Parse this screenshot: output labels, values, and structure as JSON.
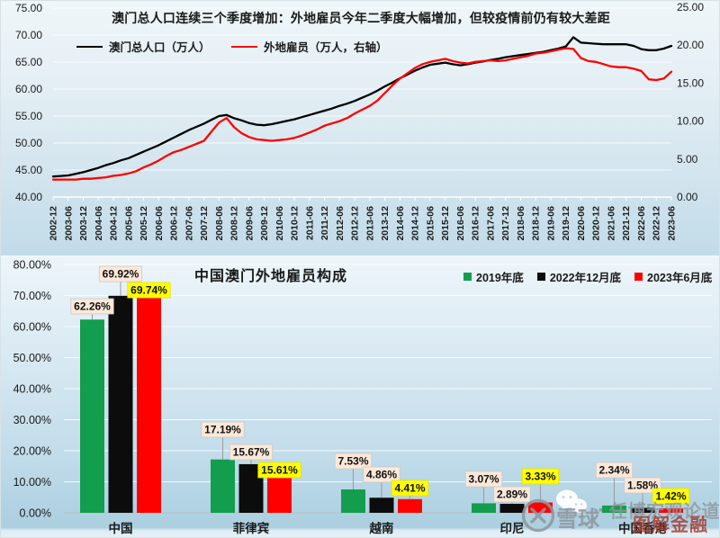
{
  "chart_data": [
    {
      "type": "line",
      "title": "澳门总人口连续三个季度增加：外地雇员今年二季度大幅增加，但较疫情前仍有较大差距",
      "x_labels": [
        "2002-12",
        "2003-06",
        "2003-12",
        "2004-06",
        "2004-12",
        "2005-06",
        "2005-12",
        "2006-06",
        "2006-12",
        "2007-06",
        "2007-12",
        "2008-06",
        "2008-12",
        "2009-06",
        "2009-12",
        "2010-06",
        "2010-12",
        "2011-06",
        "2011-12",
        "2012-06",
        "2012-12",
        "2013-06",
        "2013-12",
        "2014-06",
        "2014-12",
        "2015-06",
        "2015-12",
        "2016-06",
        "2016-12",
        "2017-06",
        "2017-12",
        "2018-06",
        "2018-12",
        "2019-06",
        "2019-12",
        "2020-06",
        "2020-12",
        "2021-06",
        "2021-12",
        "2022-06",
        "2022-12",
        "2023-06"
      ],
      "left_axis": {
        "min": 40,
        "max": 75,
        "ticks": [
          "75.00",
          "70.00",
          "65.00",
          "60.00",
          "55.00",
          "50.00",
          "45.00",
          "40.00"
        ]
      },
      "right_axis": {
        "min": 0,
        "max": 25,
        "ticks": [
          "25.00",
          "20.00",
          "15.00",
          "10.00",
          "5.00",
          "0.00"
        ]
      },
      "grid": true,
      "legend_position": "top",
      "series": [
        {
          "name": "澳门总人口（万人）",
          "axis": "left",
          "color": "#000000",
          "values": [
            43.8,
            43.9,
            44.0,
            44.3,
            44.6,
            45.0,
            45.4,
            45.9,
            46.3,
            46.8,
            47.2,
            47.8,
            48.4,
            49.0,
            49.6,
            50.3,
            51.0,
            51.7,
            52.4,
            53.0,
            53.6,
            54.3,
            55.0,
            55.2,
            54.6,
            54.2,
            53.7,
            53.4,
            53.3,
            53.5,
            53.8,
            54.1,
            54.4,
            54.8,
            55.2,
            55.6,
            56.0,
            56.4,
            56.9,
            57.3,
            57.8,
            58.4,
            59.0,
            59.7,
            60.5,
            61.2,
            62.0,
            62.7,
            63.4,
            64.0,
            64.5,
            64.7,
            64.9,
            64.6,
            64.4,
            64.6,
            64.9,
            65.1,
            65.4,
            65.6,
            65.9,
            66.1,
            66.3,
            66.5,
            66.7,
            66.9,
            67.2,
            67.5,
            67.9,
            69.6,
            68.6,
            68.5,
            68.4,
            68.3,
            68.3,
            68.3,
            68.3,
            68.0,
            67.4,
            67.2,
            67.2,
            67.5,
            68.0
          ]
        },
        {
          "name": "外地雇员（万人，右轴）",
          "axis": "right",
          "color": "#fe0000",
          "values": [
            2.3,
            2.3,
            2.3,
            2.3,
            2.4,
            2.4,
            2.5,
            2.6,
            2.8,
            2.9,
            3.1,
            3.4,
            3.9,
            4.3,
            4.8,
            5.4,
            5.9,
            6.2,
            6.6,
            7.0,
            7.4,
            8.6,
            9.8,
            10.4,
            9.2,
            8.4,
            7.9,
            7.6,
            7.5,
            7.4,
            7.5,
            7.6,
            7.8,
            8.1,
            8.5,
            8.9,
            9.4,
            9.7,
            10.0,
            10.4,
            11.0,
            11.5,
            12.0,
            12.7,
            13.7,
            14.7,
            15.6,
            16.3,
            17.0,
            17.5,
            17.8,
            18.0,
            18.2,
            17.9,
            17.7,
            17.6,
            17.8,
            17.9,
            18.0,
            17.9,
            18.0,
            18.2,
            18.4,
            18.6,
            18.9,
            19.0,
            19.2,
            19.4,
            19.6,
            19.5,
            18.3,
            17.9,
            17.8,
            17.5,
            17.2,
            17.1,
            17.1,
            16.9,
            16.6,
            15.5,
            15.4,
            15.6,
            16.5
          ]
        }
      ]
    },
    {
      "type": "bar",
      "title": "中国澳门外地雇员构成",
      "categories": [
        "中国",
        "菲律宾",
        "越南",
        "印尼",
        "中国香港"
      ],
      "y_axis": {
        "min": 0,
        "max": 80,
        "ticks": [
          "80.00%",
          "70.00%",
          "60.00%",
          "50.00%",
          "40.00%",
          "30.00%",
          "20.00%",
          "10.00%",
          "0.00%"
        ]
      },
      "grid": true,
      "legend_position": "top-right",
      "series": [
        {
          "name": "2019年底",
          "color": "#129e4d",
          "label_bg": "#fce8d9",
          "values": [
            62.26,
            17.19,
            7.53,
            3.07,
            2.34
          ],
          "labels": [
            "62.26%",
            "17.19%",
            "7.53%",
            "3.07%",
            "2.34%"
          ]
        },
        {
          "name": "2022年12月底",
          "color": "#0c0c0c",
          "label_bg": "#fce8d9",
          "values": [
            69.92,
            15.67,
            4.86,
            2.89,
            1.58
          ],
          "labels": [
            "69.92%",
            "15.67%",
            "4.86%",
            "2.89%",
            "1.58%"
          ]
        },
        {
          "name": "2023年6月底",
          "color": "#fe0000",
          "label_bg": "#ffff00",
          "values": [
            69.74,
            15.61,
            4.41,
            3.33,
            1.42
          ],
          "labels": [
            "69.74%",
            "15.61%",
            "4.41%",
            "3.33%",
            "1.42%"
          ]
        }
      ]
    }
  ],
  "watermark": {
    "brand": "雪球",
    "separator": "·",
    "account": "任博宏观论道",
    "overlay": "图解金融",
    "icons": [
      "wechat-icon",
      "xueqiu-logo-icon"
    ]
  }
}
